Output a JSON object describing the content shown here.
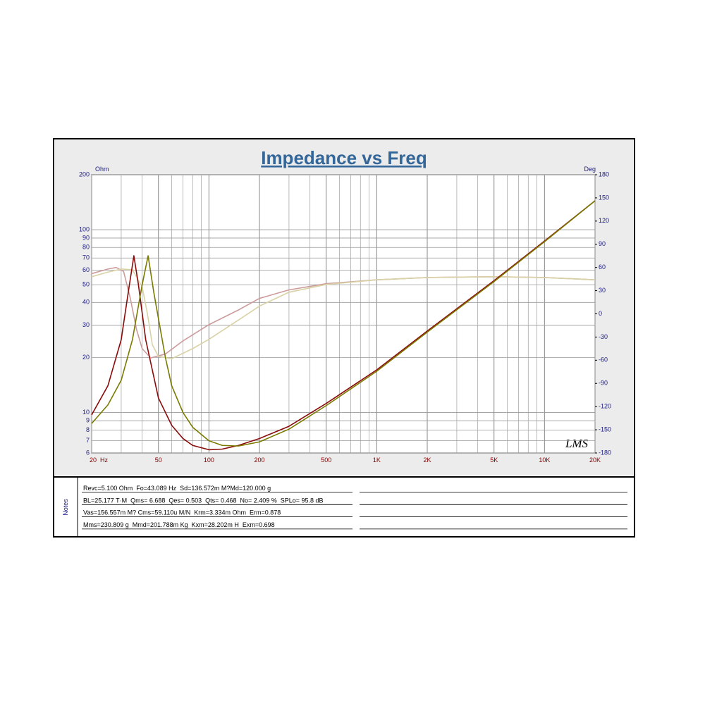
{
  "chart_data": {
    "type": "line",
    "title": "Impedance vs Freq",
    "y_label": "Ohm",
    "y2_label": "Deg",
    "watermark": "LMS",
    "xscale": "log",
    "yscale": "log",
    "grid": true,
    "xlim": [
      20,
      20000
    ],
    "ylim": [
      6,
      200
    ],
    "y2lim": [
      -180,
      180
    ],
    "xticks": [
      {
        "value": 20,
        "label": "20  Hz"
      },
      50,
      100,
      200,
      500,
      {
        "value": 1000,
        "label": "1K"
      },
      {
        "value": 2000,
        "label": "2K"
      },
      {
        "value": 5000,
        "label": "5K"
      },
      {
        "value": 10000,
        "label": "10K"
      },
      {
        "value": 20000,
        "label": "20K"
      }
    ],
    "x_minor_ticks": [
      30,
      40,
      60,
      70,
      80,
      90,
      300,
      400,
      600,
      700,
      800,
      900,
      3000,
      4000,
      6000,
      7000,
      8000,
      9000
    ],
    "yticks": [
      6,
      7,
      8,
      9,
      10,
      20,
      30,
      40,
      50,
      60,
      70,
      80,
      90,
      100,
      200
    ],
    "y2ticks": [
      -180,
      -150,
      -120,
      -90,
      -60,
      -30,
      0,
      30,
      60,
      90,
      120,
      150,
      180
    ],
    "series": [
      {
        "color": "#8b0a0a",
        "x": [
          20,
          25,
          30,
          33,
          35.7,
          38,
          42,
          50,
          60,
          70,
          80,
          100,
          120,
          150,
          200,
          300,
          500,
          1000,
          2000,
          5000,
          10000,
          20000
        ],
        "values": [
          9.7,
          14,
          25,
          45,
          72,
          50,
          25,
          12,
          8.5,
          7.2,
          6.6,
          6.25,
          6.3,
          6.6,
          7.2,
          8.4,
          11.2,
          17.1,
          27.9,
          52.6,
          86.7,
          144
        ]
      },
      {
        "color": "#7a7a00",
        "x": [
          20,
          25,
          30,
          35,
          40,
          43.4,
          47,
          55,
          60,
          70,
          80,
          100,
          120,
          150,
          200,
          300,
          500,
          1000,
          2000,
          5000,
          10000,
          20000
        ],
        "values": [
          8.7,
          11,
          15,
          25,
          50,
          72,
          45,
          20,
          14,
          10,
          8.3,
          7.0,
          6.6,
          6.55,
          6.9,
          8.1,
          10.9,
          16.8,
          27.5,
          52,
          86,
          144
        ]
      },
      {
        "color": "#cc9c9c",
        "axis": "y2",
        "x": [
          20,
          25,
          28,
          31,
          34,
          37,
          40,
          45,
          55,
          70,
          100,
          150,
          200,
          300,
          500,
          1000,
          2000,
          5000,
          10000,
          20000
        ],
        "values": [
          52,
          58,
          60,
          55,
          20,
          -20,
          -45,
          -57,
          -52,
          -35,
          -14,
          5,
          20,
          31,
          39,
          44,
          47,
          48,
          47,
          44
        ]
      },
      {
        "color": "#d9d2a6",
        "axis": "y2",
        "x": [
          20,
          25,
          30,
          35,
          40,
          43,
          46,
          50,
          60,
          80,
          100,
          150,
          200,
          300,
          500,
          1000,
          2000,
          5000,
          10000,
          20000
        ],
        "values": [
          48,
          54,
          58,
          57,
          35,
          0,
          -40,
          -55,
          -58,
          -45,
          -33,
          -8,
          10,
          28,
          38,
          44,
          47,
          48,
          47,
          44
        ]
      }
    ]
  },
  "notes": {
    "label": "Notes",
    "lines": [
      "Revc=5.100 Ohm  Fo=43.089 Hz  Sd=136.572m M?Md=120.000 g",
      "BL=25.177 T·M  Qms= 6.688  Qes= 0.503  Qts= 0.468  No= 2.409 %  SPLo= 95.8 dB",
      "Vas=156.557m M? Cms=59.110u M/N  Krm=3.334m Ohm  Erm=0.878",
      "Mms=230.809 g  Mmd=201.788m Kg  Kxm=28.202m H  Exm=0.698"
    ]
  }
}
